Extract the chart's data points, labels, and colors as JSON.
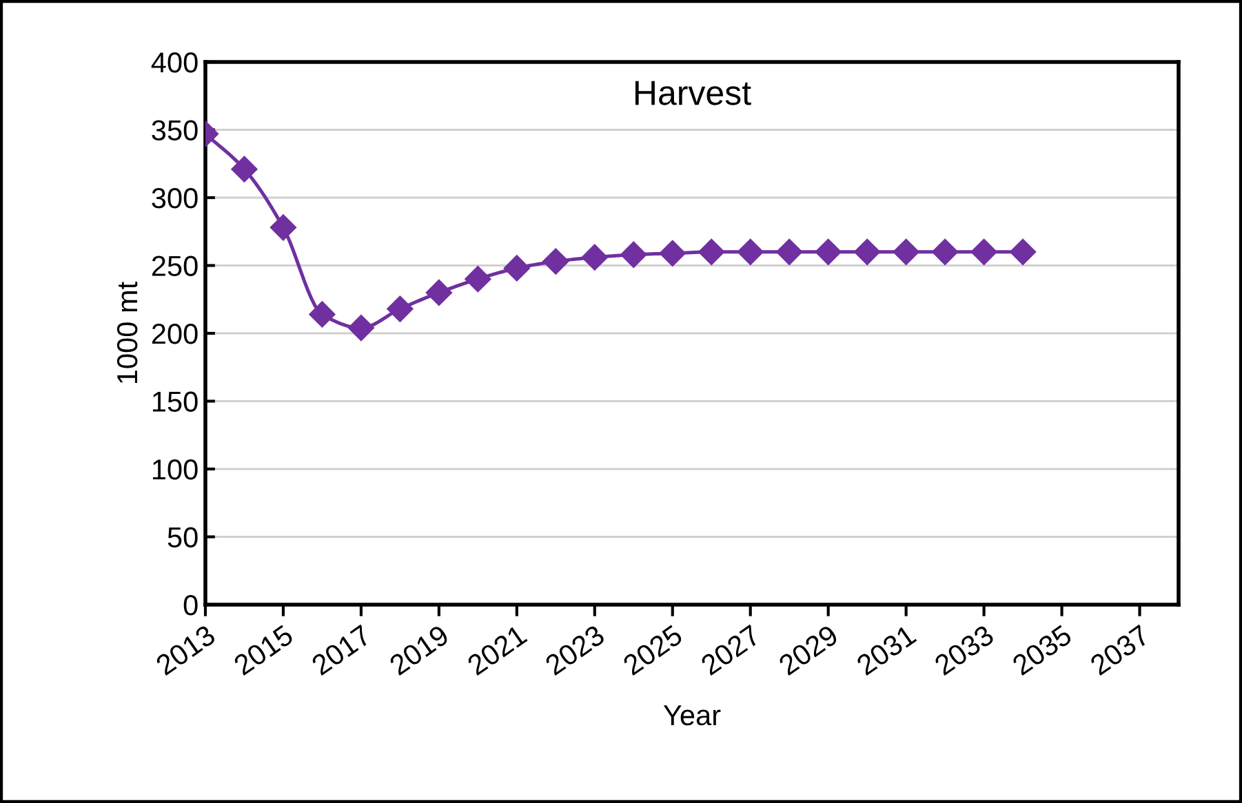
{
  "chart_data": {
    "type": "line",
    "title": "Harvest",
    "xlabel": "Year",
    "ylabel": "1000 mt",
    "x": [
      2013,
      2014,
      2015,
      2016,
      2017,
      2018,
      2019,
      2020,
      2021,
      2022,
      2023,
      2024,
      2025,
      2026,
      2027,
      2028,
      2029,
      2030,
      2031,
      2032,
      2033,
      2034
    ],
    "series": [
      {
        "color": "#7030a0",
        "values": [
          347,
          321,
          278,
          214,
          204,
          218,
          230,
          240,
          248,
          253,
          256,
          258,
          259,
          260,
          260,
          260,
          260,
          260,
          260,
          260,
          260,
          260
        ]
      }
    ],
    "xlim": [
      2013,
      2038
    ],
    "xticks": [
      2013,
      2015,
      2017,
      2019,
      2021,
      2023,
      2025,
      2027,
      2029,
      2031,
      2033,
      2035,
      2037
    ],
    "ylim": [
      0,
      400
    ],
    "yticks": [
      0,
      50,
      100,
      150,
      200,
      250,
      300,
      350,
      400
    ],
    "grid": "y",
    "marker": "diamond",
    "line_style": "solid",
    "legend": false
  }
}
